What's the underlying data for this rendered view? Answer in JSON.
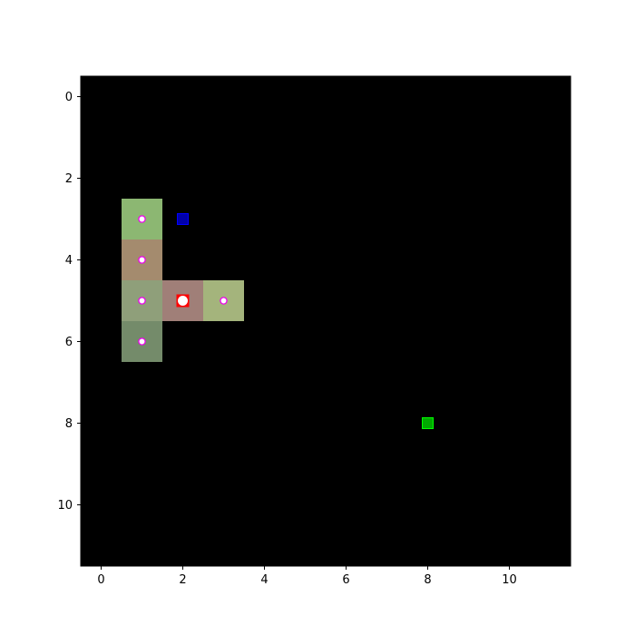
{
  "chart_data": {
    "type": "heatmap",
    "title": "",
    "xlabel": "",
    "ylabel": "",
    "xlim": [
      -0.5,
      11.5
    ],
    "ylim": [
      11.5,
      -0.5
    ],
    "x_ticks": [
      0,
      2,
      4,
      6,
      8,
      10
    ],
    "y_ticks": [
      0,
      2,
      4,
      6,
      8,
      10
    ],
    "x_tick_labels": [
      "0",
      "2",
      "4",
      "6",
      "8",
      "10"
    ],
    "y_tick_labels": [
      "0",
      "2",
      "4",
      "6",
      "8",
      "10"
    ],
    "grid": false,
    "background_color": "#000000",
    "cells": [
      {
        "x": 1,
        "y": 3,
        "color": "#8cb772"
      },
      {
        "x": 1,
        "y": 4,
        "color": "#a48b6e"
      },
      {
        "x": 1,
        "y": 5,
        "color": "#8f9f7a"
      },
      {
        "x": 2,
        "y": 5,
        "color": "#a07f78"
      },
      {
        "x": 3,
        "y": 5,
        "color": "#a4b47c"
      },
      {
        "x": 1,
        "y": 6,
        "color": "#748b6a"
      }
    ],
    "ring_markers": [
      {
        "x": 1,
        "y": 3
      },
      {
        "x": 1,
        "y": 4
      },
      {
        "x": 1,
        "y": 5
      },
      {
        "x": 3,
        "y": 5
      },
      {
        "x": 1,
        "y": 6
      }
    ],
    "ring_marker_color": "#ee00ee",
    "head_marker": {
      "x": 2,
      "y": 5,
      "square_color": "#ff0000",
      "circle_color": "#ffffff"
    },
    "blue_marker": {
      "x": 2,
      "y": 3,
      "fill": "#0000aa",
      "stroke": "#0000ff"
    },
    "green_marker": {
      "x": 8,
      "y": 8,
      "fill": "#00aa00",
      "stroke": "#00ff00"
    }
  }
}
